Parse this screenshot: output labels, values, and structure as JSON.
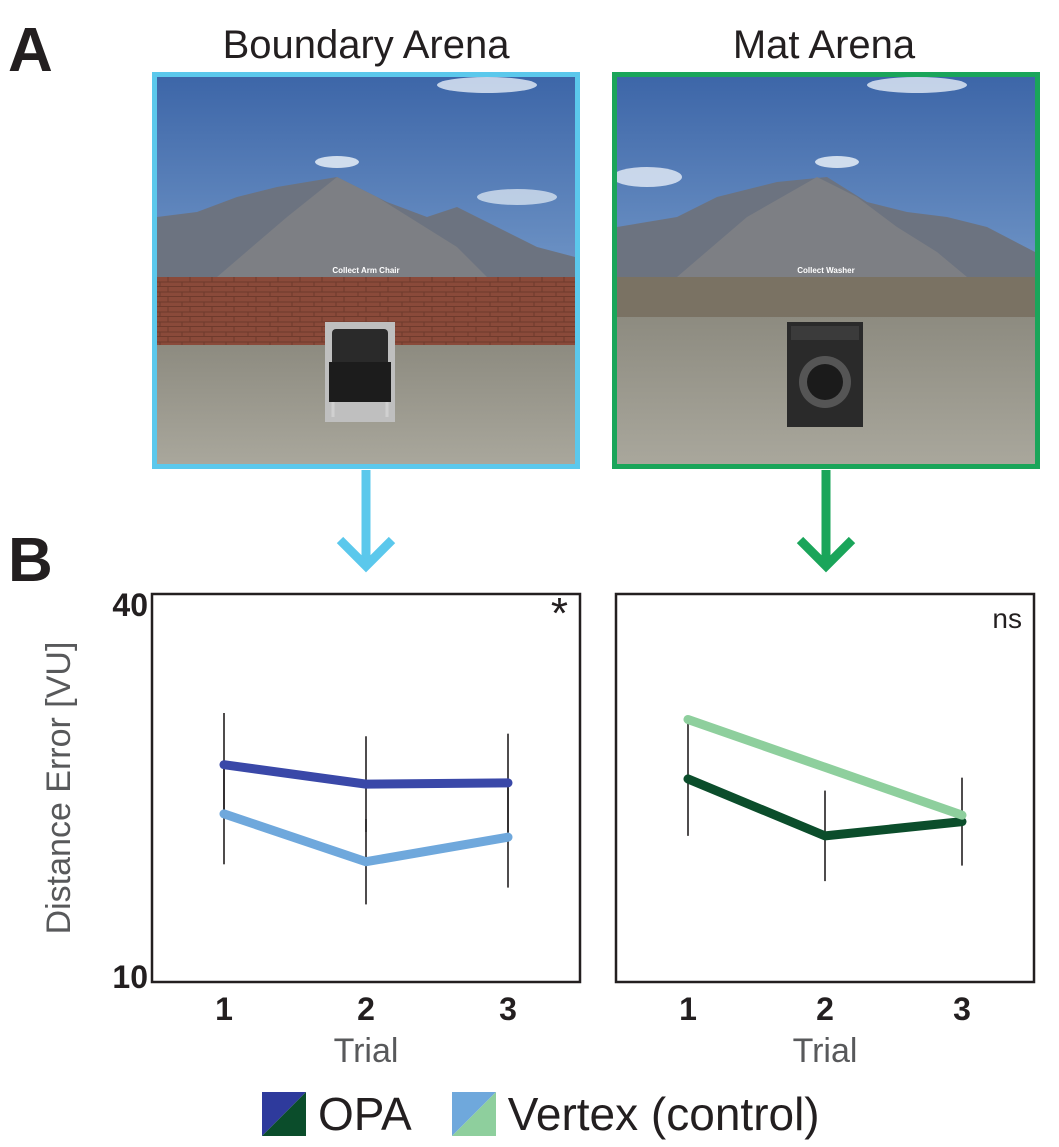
{
  "panel_labels": {
    "a": "A",
    "b": "B"
  },
  "scenes": {
    "left": {
      "title": "Boundary Arena",
      "caption": "Collect Arm Chair",
      "frame_color": "#5bc8ec"
    },
    "right": {
      "title": "Mat Arena",
      "caption": "Collect Washer",
      "frame_color": "#1aa55a"
    }
  },
  "chart_data": [
    {
      "type": "line",
      "panel": "Boundary Arena",
      "annotation": "*",
      "xlabel": "Trial",
      "ylabel": "Distance Error [VU]",
      "x": [
        1,
        2,
        3
      ],
      "xtick_labels": [
        "1",
        "2",
        "3"
      ],
      "ylim": [
        10,
        40
      ],
      "ytick_labels": [
        "10",
        "40"
      ],
      "grid": false,
      "series": [
        {
          "name": "OPA",
          "values": [
            26.8,
            25.3,
            25.4
          ],
          "err": [
            4.0,
            3.7,
            3.8
          ],
          "color": "#3a48a8"
        },
        {
          "name": "Vertex (control)",
          "values": [
            23.0,
            19.3,
            21.2
          ],
          "err": [
            3.9,
            3.3,
            3.9
          ],
          "color": "#6fa8dc"
        }
      ]
    },
    {
      "type": "line",
      "panel": "Mat Arena",
      "annotation": "ns",
      "xlabel": "Trial",
      "ylabel": "",
      "x": [
        1,
        2,
        3
      ],
      "xtick_labels": [
        "1",
        "2",
        "3"
      ],
      "ylim": [
        10,
        40
      ],
      "grid": false,
      "series": [
        {
          "name": "OPA",
          "values": [
            25.7,
            21.3,
            22.4
          ],
          "err": [
            4.4,
            3.5,
            3.4
          ],
          "color": "#0b4d2b"
        },
        {
          "name": "Vertex (control)",
          "values": [
            30.3,
            26.6,
            22.9
          ],
          "err": [
            0.0,
            0.0,
            0.0
          ],
          "color": "#8ecf9d"
        }
      ]
    }
  ],
  "legend": [
    {
      "label": "OPA",
      "color_a": "#2e3a9c",
      "color_b": "#0b4d2b"
    },
    {
      "label": "Vertex (control)",
      "color_a": "#6fa8dc",
      "color_b": "#8ecf9d"
    }
  ]
}
